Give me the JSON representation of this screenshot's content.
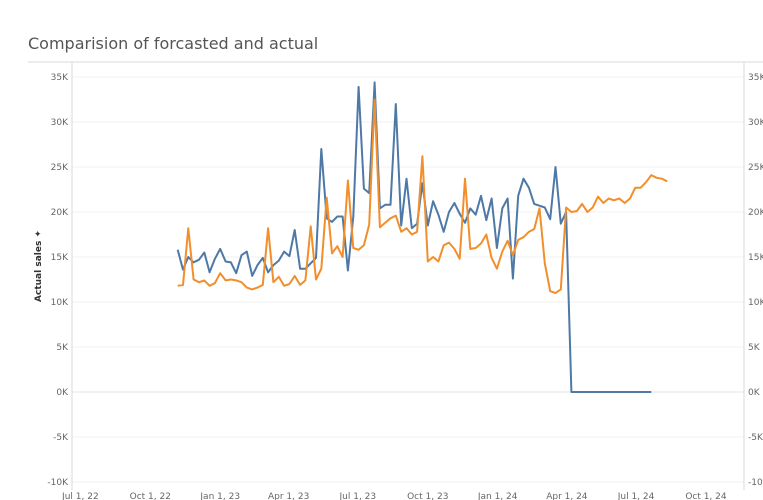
{
  "chart_data": {
    "type": "line",
    "title": "Comparision of forcasted and actual",
    "xlabel": "",
    "ylabel": "Actual sales ✦",
    "x_axis": "date",
    "xlim": [
      "2022-06-20",
      "2024-11-20"
    ],
    "ylim": [
      -10000,
      37000
    ],
    "y_ticks": [
      35000,
      30000,
      25000,
      20000,
      15000,
      10000,
      5000,
      0,
      -5000,
      -10000
    ],
    "y_tick_labels": [
      "35K",
      "30K",
      "25K",
      "20K",
      "15K",
      "10K",
      "5K",
      "0K",
      "-5K",
      "-10K"
    ],
    "x_ticks": [
      "2022-07-01",
      "2022-10-01",
      "2023-01-01",
      "2023-04-01",
      "2023-07-01",
      "2023-10-01",
      "2024-01-01",
      "2024-04-01",
      "2024-07-01",
      "2024-10-01"
    ],
    "x_tick_labels": [
      "Jul 1, 22",
      "Oct 1, 22",
      "Jan 1, 23",
      "Apr 1, 23",
      "Jul 1, 23",
      "Oct 1, 23",
      "Jan 1, 24",
      "Apr 1, 24",
      "Jul 1, 24",
      "Oct 1, 24"
    ],
    "dual_axis": true,
    "grid": "horizontal",
    "legend": "none",
    "series": [
      {
        "color": "#4e79a7",
        "points": [
          [
            "2022-11-06",
            15800
          ],
          [
            "2022-11-13",
            13600
          ],
          [
            "2022-11-20",
            15000
          ],
          [
            "2022-11-27",
            14400
          ],
          [
            "2022-12-04",
            14700
          ],
          [
            "2022-12-11",
            15500
          ],
          [
            "2022-12-18",
            13300
          ],
          [
            "2022-12-25",
            14800
          ],
          [
            "2023-01-01",
            15900
          ],
          [
            "2023-01-08",
            14500
          ],
          [
            "2023-01-15",
            14400
          ],
          [
            "2023-01-22",
            13200
          ],
          [
            "2023-01-29",
            15200
          ],
          [
            "2023-02-05",
            15600
          ],
          [
            "2023-02-12",
            12900
          ],
          [
            "2023-02-19",
            14100
          ],
          [
            "2023-02-26",
            14900
          ],
          [
            "2023-03-05",
            13300
          ],
          [
            "2023-03-12",
            14100
          ],
          [
            "2023-03-19",
            14600
          ],
          [
            "2023-03-26",
            15600
          ],
          [
            "2023-04-02",
            15100
          ],
          [
            "2023-04-09",
            18000
          ],
          [
            "2023-04-16",
            13700
          ],
          [
            "2023-04-23",
            13700
          ],
          [
            "2023-04-30",
            14300
          ],
          [
            "2023-05-07",
            14900
          ],
          [
            "2023-05-14",
            27000
          ],
          [
            "2023-05-21",
            19300
          ],
          [
            "2023-05-28",
            18900
          ],
          [
            "2023-06-04",
            19500
          ],
          [
            "2023-06-11",
            19500
          ],
          [
            "2023-06-18",
            13500
          ],
          [
            "2023-06-25",
            19500
          ],
          [
            "2023-07-02",
            33900
          ],
          [
            "2023-07-09",
            22600
          ],
          [
            "2023-07-16",
            22100
          ],
          [
            "2023-07-23",
            34400
          ],
          [
            "2023-07-30",
            20400
          ],
          [
            "2023-08-06",
            20800
          ],
          [
            "2023-08-13",
            20800
          ],
          [
            "2023-08-20",
            32000
          ],
          [
            "2023-08-27",
            18500
          ],
          [
            "2023-09-03",
            23700
          ],
          [
            "2023-09-10",
            18200
          ],
          [
            "2023-09-17",
            18700
          ],
          [
            "2023-09-24",
            23200
          ],
          [
            "2023-10-01",
            18500
          ],
          [
            "2023-10-08",
            21200
          ],
          [
            "2023-10-15",
            19700
          ],
          [
            "2023-10-22",
            17800
          ],
          [
            "2023-10-29",
            20000
          ],
          [
            "2023-11-05",
            21000
          ],
          [
            "2023-11-12",
            19800
          ],
          [
            "2023-11-19",
            18800
          ],
          [
            "2023-11-26",
            20400
          ],
          [
            "2023-12-03",
            19700
          ],
          [
            "2023-12-10",
            21800
          ],
          [
            "2023-12-17",
            19100
          ],
          [
            "2023-12-24",
            21500
          ],
          [
            "2023-12-31",
            16000
          ],
          [
            "2024-01-07",
            20400
          ],
          [
            "2024-01-14",
            21500
          ],
          [
            "2024-01-21",
            12600
          ],
          [
            "2024-01-28",
            21800
          ],
          [
            "2024-02-04",
            23700
          ],
          [
            "2024-02-11",
            22700
          ],
          [
            "2024-02-18",
            20900
          ],
          [
            "2024-02-25",
            20700
          ],
          [
            "2024-03-03",
            20500
          ],
          [
            "2024-03-10",
            19200
          ],
          [
            "2024-03-17",
            25000
          ],
          [
            "2024-03-24",
            18700
          ],
          [
            "2024-03-31",
            20000
          ],
          [
            "2024-04-07",
            0
          ],
          [
            "2024-07-21",
            0
          ]
        ]
      },
      {
        "color": "#f28e2b",
        "points": [
          [
            "2022-11-06",
            11800
          ],
          [
            "2022-11-13",
            11900
          ],
          [
            "2022-11-20",
            18200
          ],
          [
            "2022-11-27",
            12500
          ],
          [
            "2022-12-04",
            12200
          ],
          [
            "2022-12-11",
            12400
          ],
          [
            "2022-12-18",
            11800
          ],
          [
            "2022-12-25",
            12100
          ],
          [
            "2023-01-01",
            13200
          ],
          [
            "2023-01-08",
            12400
          ],
          [
            "2023-01-15",
            12500
          ],
          [
            "2023-01-22",
            12400
          ],
          [
            "2023-01-29",
            12200
          ],
          [
            "2023-02-05",
            11600
          ],
          [
            "2023-02-12",
            11400
          ],
          [
            "2023-02-19",
            11600
          ],
          [
            "2023-02-26",
            11900
          ],
          [
            "2023-03-05",
            18200
          ],
          [
            "2023-03-12",
            12200
          ],
          [
            "2023-03-19",
            12800
          ],
          [
            "2023-03-26",
            11800
          ],
          [
            "2023-04-02",
            12000
          ],
          [
            "2023-04-09",
            12900
          ],
          [
            "2023-04-16",
            11900
          ],
          [
            "2023-04-23",
            12400
          ],
          [
            "2023-04-30",
            18400
          ],
          [
            "2023-05-07",
            12500
          ],
          [
            "2023-05-14",
            13700
          ],
          [
            "2023-05-21",
            21600
          ],
          [
            "2023-05-28",
            15400
          ],
          [
            "2023-06-04",
            16200
          ],
          [
            "2023-06-11",
            15000
          ],
          [
            "2023-06-18",
            23500
          ],
          [
            "2023-06-25",
            16000
          ],
          [
            "2023-07-02",
            15800
          ],
          [
            "2023-07-09",
            16300
          ],
          [
            "2023-07-16",
            18600
          ],
          [
            "2023-07-23",
            32500
          ],
          [
            "2023-07-30",
            18300
          ],
          [
            "2023-08-06",
            18800
          ],
          [
            "2023-08-13",
            19300
          ],
          [
            "2023-08-20",
            19600
          ],
          [
            "2023-08-27",
            17800
          ],
          [
            "2023-09-03",
            18200
          ],
          [
            "2023-09-10",
            17500
          ],
          [
            "2023-09-17",
            17800
          ],
          [
            "2023-09-24",
            26200
          ],
          [
            "2023-10-01",
            14500
          ],
          [
            "2023-10-08",
            15000
          ],
          [
            "2023-10-15",
            14500
          ],
          [
            "2023-10-22",
            16300
          ],
          [
            "2023-10-29",
            16600
          ],
          [
            "2023-11-05",
            15900
          ],
          [
            "2023-11-12",
            14800
          ],
          [
            "2023-11-19",
            23700
          ],
          [
            "2023-11-26",
            15900
          ],
          [
            "2023-12-03",
            16000
          ],
          [
            "2023-12-10",
            16500
          ],
          [
            "2023-12-17",
            17500
          ],
          [
            "2023-12-24",
            14900
          ],
          [
            "2023-12-31",
            13700
          ],
          [
            "2024-01-07",
            15600
          ],
          [
            "2024-01-14",
            16800
          ],
          [
            "2024-01-21",
            15200
          ],
          [
            "2024-01-28",
            16900
          ],
          [
            "2024-02-04",
            17200
          ],
          [
            "2024-02-11",
            17800
          ],
          [
            "2024-02-18",
            18100
          ],
          [
            "2024-02-25",
            20400
          ],
          [
            "2024-03-03",
            14300
          ],
          [
            "2024-03-10",
            11200
          ],
          [
            "2024-03-17",
            11000
          ],
          [
            "2024-03-24",
            11400
          ],
          [
            "2024-03-31",
            20500
          ],
          [
            "2024-04-07",
            20000
          ],
          [
            "2024-04-14",
            20100
          ],
          [
            "2024-04-21",
            20900
          ],
          [
            "2024-04-28",
            20000
          ],
          [
            "2024-05-05",
            20500
          ],
          [
            "2024-05-12",
            21700
          ],
          [
            "2024-05-19",
            21000
          ],
          [
            "2024-05-26",
            21500
          ],
          [
            "2024-06-02",
            21300
          ],
          [
            "2024-06-09",
            21500
          ],
          [
            "2024-06-16",
            21000
          ],
          [
            "2024-06-23",
            21500
          ],
          [
            "2024-06-30",
            22700
          ],
          [
            "2024-07-07",
            22700
          ],
          [
            "2024-07-14",
            23300
          ],
          [
            "2024-07-21",
            24100
          ],
          [
            "2024-07-28",
            23800
          ],
          [
            "2024-08-04",
            23700
          ],
          [
            "2024-08-11",
            23400
          ]
        ]
      }
    ]
  }
}
